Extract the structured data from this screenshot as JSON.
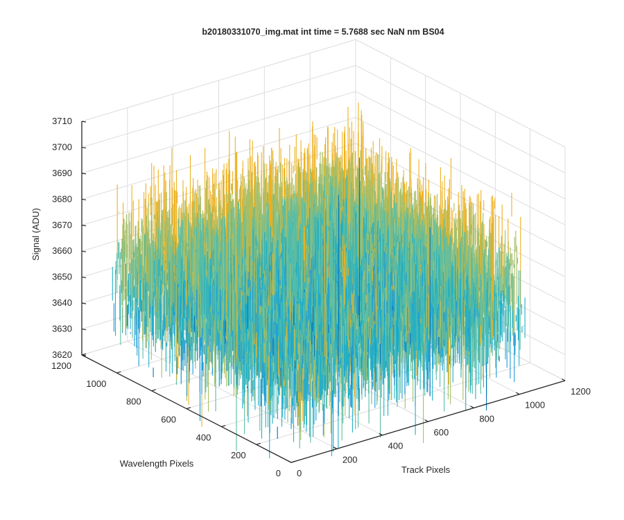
{
  "chart_data": {
    "type": "surface",
    "title": "b20180331070_img.mat int time = 5.7688 sec  NaN nm BS04",
    "xlabel": "Track Pixels",
    "ylabel": "Wavelength Pixels",
    "zlabel": "Signal (ADU)",
    "xlim": [
      0,
      1200
    ],
    "ylim": [
      0,
      1200
    ],
    "zlim": [
      3620,
      3710
    ],
    "x_ticks": [
      0,
      200,
      400,
      600,
      800,
      1000,
      1200
    ],
    "y_ticks": [
      0,
      200,
      400,
      600,
      800,
      1000,
      1200
    ],
    "z_ticks": [
      3620,
      3630,
      3640,
      3650,
      3660,
      3670,
      3680,
      3690,
      3700,
      3710
    ],
    "x_tick_labels": [
      "0",
      "200",
      "400",
      "600",
      "800",
      "1000",
      "1200"
    ],
    "y_tick_labels": [
      "0",
      "200",
      "400",
      "600",
      "800",
      "1000",
      "1200"
    ],
    "z_tick_labels": [
      "3620",
      "3630",
      "3640",
      "3650",
      "3660",
      "3670",
      "3680",
      "3690",
      "3700",
      "3710"
    ],
    "data_extent": {
      "x": [
        0,
        1024
      ],
      "y": [
        0,
        1024
      ]
    },
    "signal": {
      "mean": 3658,
      "typical_range": [
        3630,
        3690
      ],
      "min_outlier": 3623,
      "max_outlier": 3707
    },
    "colormap": [
      "#0072BD",
      "#1E9AD6",
      "#21B0C7",
      "#5BBDA3",
      "#A5BE68",
      "#EDB120"
    ],
    "grid": true,
    "view": "3-D, azimuth -37.5°, elevation 30°"
  }
}
